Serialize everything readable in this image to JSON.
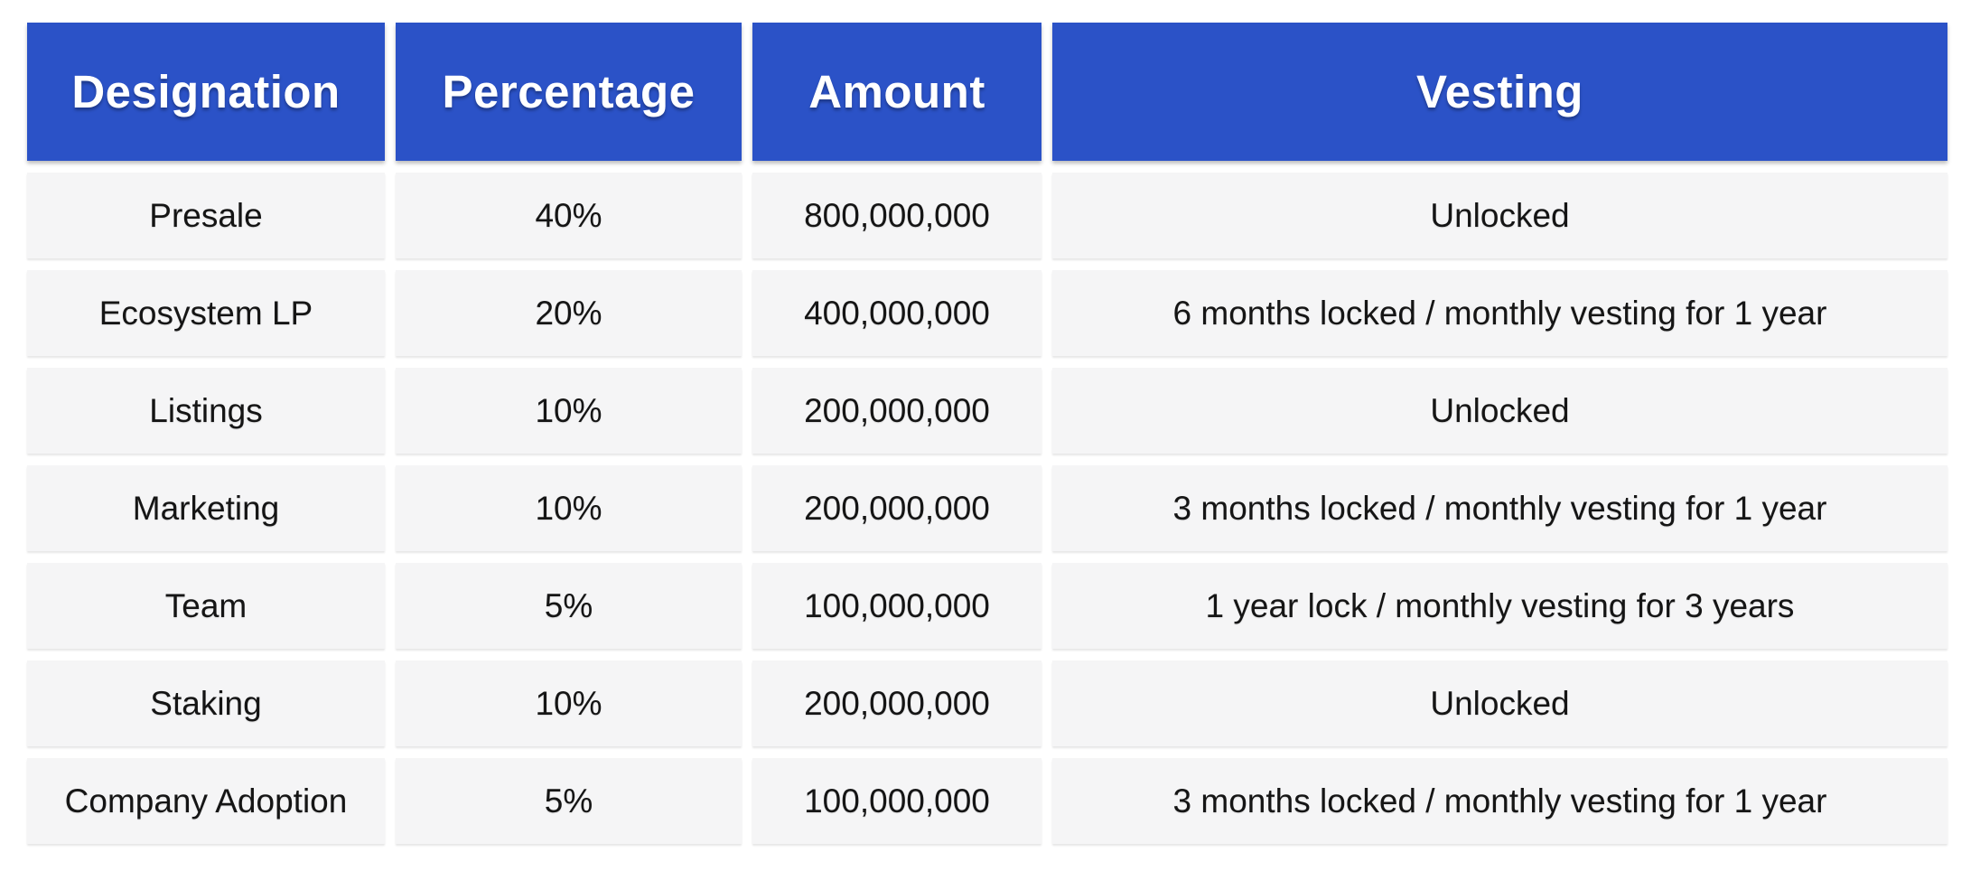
{
  "table": {
    "columns": [
      "Designation",
      "Percentage",
      "Amount",
      "Vesting"
    ],
    "rows": [
      {
        "designation": "Presale",
        "percentage": "40%",
        "amount": "800,000,000",
        "vesting": "Unlocked"
      },
      {
        "designation": "Ecosystem LP",
        "percentage": "20%",
        "amount": "400,000,000",
        "vesting": "6 months locked / monthly vesting for 1 year"
      },
      {
        "designation": "Listings",
        "percentage": "10%",
        "amount": "200,000,000",
        "vesting": "Unlocked"
      },
      {
        "designation": "Marketing",
        "percentage": "10%",
        "amount": "200,000,000",
        "vesting": "3 months locked / monthly vesting for 1 year"
      },
      {
        "designation": "Team",
        "percentage": "5%",
        "amount": "100,000,000",
        "vesting": "1 year lock / monthly vesting for 3 years"
      },
      {
        "designation": "Staking",
        "percentage": "10%",
        "amount": "200,000,000",
        "vesting": "Unlocked"
      },
      {
        "designation": "Company Adoption",
        "percentage": "5%",
        "amount": "100,000,000",
        "vesting": "3 months locked / monthly vesting for 1 year"
      }
    ]
  },
  "colors": {
    "header_bg": "#2B52C7",
    "header_text": "#FFFFFF",
    "row_bg": "#F5F5F6",
    "body_text": "#151515",
    "page_bg": "#FFFFFF"
  },
  "chart_data": {
    "type": "table",
    "title": "",
    "columns": [
      "Designation",
      "Percentage",
      "Amount",
      "Vesting"
    ],
    "rows": [
      [
        "Presale",
        "40%",
        "800,000,000",
        "Unlocked"
      ],
      [
        "Ecosystem LP",
        "20%",
        "400,000,000",
        "6 months locked / monthly vesting for 1 year"
      ],
      [
        "Listings",
        "10%",
        "200,000,000",
        "Unlocked"
      ],
      [
        "Marketing",
        "10%",
        "200,000,000",
        "3 months locked / monthly vesting for 1 year"
      ],
      [
        "Team",
        "5%",
        "100,000,000",
        "1 year lock / monthly vesting for 3 years"
      ],
      [
        "Staking",
        "10%",
        "200,000,000",
        "Unlocked"
      ],
      [
        "Company Adoption",
        "5%",
        "100,000,000",
        "3 months locked / monthly vesting for 1 year"
      ]
    ]
  }
}
